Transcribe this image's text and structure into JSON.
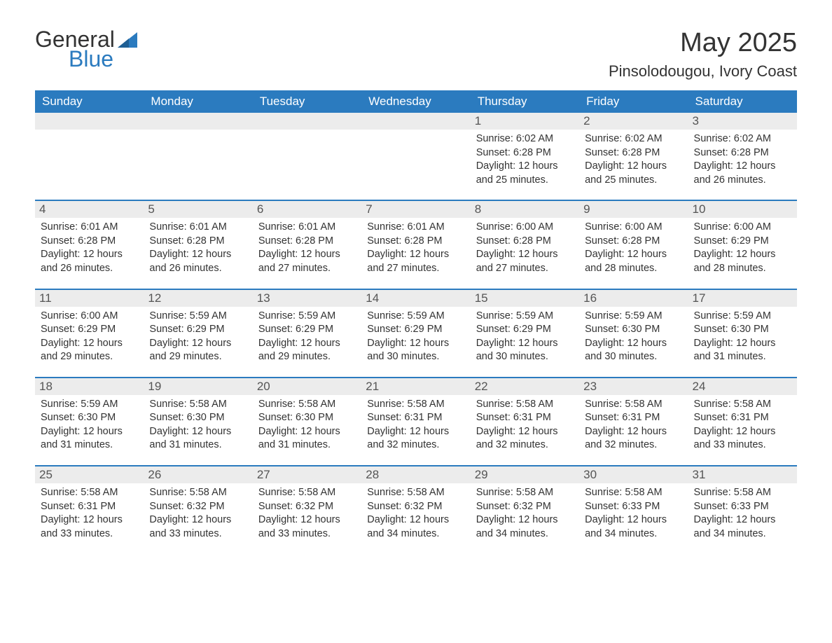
{
  "logo": {
    "text1": "General",
    "text2": "Blue"
  },
  "title": "May 2025",
  "location": "Pinsolodougou, Ivory Coast",
  "weekdays": [
    "Sunday",
    "Monday",
    "Tuesday",
    "Wednesday",
    "Thursday",
    "Friday",
    "Saturday"
  ],
  "colors": {
    "brand_blue": "#2b7bbf",
    "row_gray": "#ececec",
    "text": "#333333",
    "background": "#ffffff"
  },
  "typography": {
    "month_title_fontsize": 38,
    "location_fontsize": 22,
    "weekday_fontsize": 17,
    "daynum_fontsize": 17,
    "detail_fontsize": 14.5
  },
  "rows": [
    [
      {
        "blank": true
      },
      {
        "blank": true
      },
      {
        "blank": true
      },
      {
        "blank": true
      },
      {
        "day": "1",
        "sunrise": "6:02 AM",
        "sunset": "6:28 PM",
        "daylight": "12 hours and 25 minutes."
      },
      {
        "day": "2",
        "sunrise": "6:02 AM",
        "sunset": "6:28 PM",
        "daylight": "12 hours and 25 minutes."
      },
      {
        "day": "3",
        "sunrise": "6:02 AM",
        "sunset": "6:28 PM",
        "daylight": "12 hours and 26 minutes."
      }
    ],
    [
      {
        "day": "4",
        "sunrise": "6:01 AM",
        "sunset": "6:28 PM",
        "daylight": "12 hours and 26 minutes."
      },
      {
        "day": "5",
        "sunrise": "6:01 AM",
        "sunset": "6:28 PM",
        "daylight": "12 hours and 26 minutes."
      },
      {
        "day": "6",
        "sunrise": "6:01 AM",
        "sunset": "6:28 PM",
        "daylight": "12 hours and 27 minutes."
      },
      {
        "day": "7",
        "sunrise": "6:01 AM",
        "sunset": "6:28 PM",
        "daylight": "12 hours and 27 minutes."
      },
      {
        "day": "8",
        "sunrise": "6:00 AM",
        "sunset": "6:28 PM",
        "daylight": "12 hours and 27 minutes."
      },
      {
        "day": "9",
        "sunrise": "6:00 AM",
        "sunset": "6:28 PM",
        "daylight": "12 hours and 28 minutes."
      },
      {
        "day": "10",
        "sunrise": "6:00 AM",
        "sunset": "6:29 PM",
        "daylight": "12 hours and 28 minutes."
      }
    ],
    [
      {
        "day": "11",
        "sunrise": "6:00 AM",
        "sunset": "6:29 PM",
        "daylight": "12 hours and 29 minutes."
      },
      {
        "day": "12",
        "sunrise": "5:59 AM",
        "sunset": "6:29 PM",
        "daylight": "12 hours and 29 minutes."
      },
      {
        "day": "13",
        "sunrise": "5:59 AM",
        "sunset": "6:29 PM",
        "daylight": "12 hours and 29 minutes."
      },
      {
        "day": "14",
        "sunrise": "5:59 AM",
        "sunset": "6:29 PM",
        "daylight": "12 hours and 30 minutes."
      },
      {
        "day": "15",
        "sunrise": "5:59 AM",
        "sunset": "6:29 PM",
        "daylight": "12 hours and 30 minutes."
      },
      {
        "day": "16",
        "sunrise": "5:59 AM",
        "sunset": "6:30 PM",
        "daylight": "12 hours and 30 minutes."
      },
      {
        "day": "17",
        "sunrise": "5:59 AM",
        "sunset": "6:30 PM",
        "daylight": "12 hours and 31 minutes."
      }
    ],
    [
      {
        "day": "18",
        "sunrise": "5:59 AM",
        "sunset": "6:30 PM",
        "daylight": "12 hours and 31 minutes."
      },
      {
        "day": "19",
        "sunrise": "5:58 AM",
        "sunset": "6:30 PM",
        "daylight": "12 hours and 31 minutes."
      },
      {
        "day": "20",
        "sunrise": "5:58 AM",
        "sunset": "6:30 PM",
        "daylight": "12 hours and 31 minutes."
      },
      {
        "day": "21",
        "sunrise": "5:58 AM",
        "sunset": "6:31 PM",
        "daylight": "12 hours and 32 minutes."
      },
      {
        "day": "22",
        "sunrise": "5:58 AM",
        "sunset": "6:31 PM",
        "daylight": "12 hours and 32 minutes."
      },
      {
        "day": "23",
        "sunrise": "5:58 AM",
        "sunset": "6:31 PM",
        "daylight": "12 hours and 32 minutes."
      },
      {
        "day": "24",
        "sunrise": "5:58 AM",
        "sunset": "6:31 PM",
        "daylight": "12 hours and 33 minutes."
      }
    ],
    [
      {
        "day": "25",
        "sunrise": "5:58 AM",
        "sunset": "6:31 PM",
        "daylight": "12 hours and 33 minutes."
      },
      {
        "day": "26",
        "sunrise": "5:58 AM",
        "sunset": "6:32 PM",
        "daylight": "12 hours and 33 minutes."
      },
      {
        "day": "27",
        "sunrise": "5:58 AM",
        "sunset": "6:32 PM",
        "daylight": "12 hours and 33 minutes."
      },
      {
        "day": "28",
        "sunrise": "5:58 AM",
        "sunset": "6:32 PM",
        "daylight": "12 hours and 34 minutes."
      },
      {
        "day": "29",
        "sunrise": "5:58 AM",
        "sunset": "6:32 PM",
        "daylight": "12 hours and 34 minutes."
      },
      {
        "day": "30",
        "sunrise": "5:58 AM",
        "sunset": "6:33 PM",
        "daylight": "12 hours and 34 minutes."
      },
      {
        "day": "31",
        "sunrise": "5:58 AM",
        "sunset": "6:33 PM",
        "daylight": "12 hours and 34 minutes."
      }
    ]
  ],
  "labels": {
    "sunrise": "Sunrise:",
    "sunset": "Sunset:",
    "daylight": "Daylight:"
  }
}
